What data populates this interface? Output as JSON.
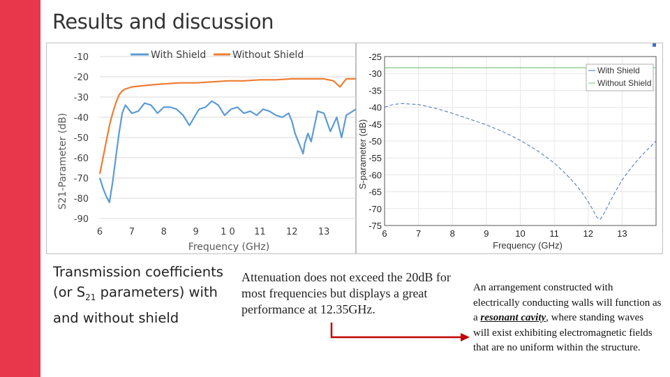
{
  "page": {
    "title": "Results and discussion",
    "accent_color": "#e8364a"
  },
  "captions": {
    "left_prefix": "Transmission coefficients (or S",
    "left_sub": "21",
    "left_suffix": " parameters) with and without shield",
    "middle": "Attenuation does not exceed the 20dB for most frequencies but displays a great performance at 12.35GHz.",
    "right_prefix": "An arrangement constructed with electrically conducting walls will function as a ",
    "right_emphasis": "resonant cavity",
    "right_suffix": ", where standing waves will exist exhibiting electromagnetic fields that are no uniform within the structure."
  },
  "chart_data": [
    {
      "type": "line",
      "xlabel": "Frequency (GHz)",
      "ylabel": "S21-Parameter (dB)",
      "xlim": [
        6,
        14
      ],
      "ylim": [
        -90,
        -10
      ],
      "x_ticks": [
        6,
        7,
        8,
        9,
        10,
        11,
        12,
        13
      ],
      "x_tick_labels": [
        "6",
        "7",
        "8",
        "9",
        "1 0",
        "11",
        "12",
        "13"
      ],
      "y_ticks": [
        -10,
        -20,
        -30,
        -40,
        -50,
        -60,
        -70,
        -80,
        -90
      ],
      "grid": true,
      "legend_position": "top",
      "series": [
        {
          "name": "With Shield",
          "color": "#5b9bd5",
          "x": [
            6.0,
            6.1,
            6.2,
            6.3,
            6.4,
            6.5,
            6.6,
            6.7,
            6.8,
            6.9,
            7.0,
            7.2,
            7.4,
            7.6,
            7.8,
            8.0,
            8.2,
            8.4,
            8.6,
            8.8,
            8.95,
            9.1,
            9.3,
            9.5,
            9.7,
            9.9,
            10.1,
            10.3,
            10.5,
            10.7,
            10.9,
            11.1,
            11.3,
            11.5,
            11.7,
            11.9,
            12.0,
            12.1,
            12.2,
            12.3,
            12.35,
            12.4,
            12.5,
            12.6,
            12.8,
            13.0,
            13.2,
            13.4,
            13.55,
            13.7,
            13.9,
            14.0
          ],
          "y": [
            -70,
            -75,
            -79,
            -82,
            -72,
            -60,
            -48,
            -38,
            -34,
            -36,
            -38,
            -37,
            -33,
            -34,
            -38,
            -35,
            -35,
            -36,
            -39,
            -44,
            -40,
            -36,
            -35,
            -32,
            -34,
            -39,
            -36,
            -35,
            -38,
            -37,
            -39,
            -36,
            -37,
            -39,
            -40,
            -38,
            -42,
            -48,
            -52,
            -56,
            -58,
            -53,
            -48,
            -52,
            -37,
            -38,
            -47,
            -40,
            -50,
            -39,
            -37,
            -36
          ]
        },
        {
          "name": "Without Shield",
          "color": "#ed7d31",
          "x": [
            6.0,
            6.1,
            6.2,
            6.3,
            6.4,
            6.5,
            6.6,
            6.7,
            6.8,
            6.9,
            7.0,
            7.3,
            7.6,
            8.0,
            8.5,
            9.0,
            9.5,
            10.0,
            10.5,
            11.0,
            11.5,
            12.0,
            12.5,
            13.0,
            13.3,
            13.5,
            13.7,
            14.0
          ],
          "y": [
            -68,
            -60,
            -52,
            -44,
            -38,
            -33,
            -29,
            -27,
            -26,
            -25.5,
            -25,
            -24.5,
            -24,
            -23.5,
            -23,
            -23,
            -22.5,
            -22,
            -22,
            -21.5,
            -21.5,
            -21,
            -21,
            -21,
            -22,
            -25,
            -21,
            -21
          ]
        }
      ]
    },
    {
      "type": "line",
      "xlabel": "Frequency (GHz)",
      "ylabel": "S-parameter (dB)",
      "xlim": [
        6,
        14
      ],
      "ylim": [
        -75,
        -25
      ],
      "x_ticks": [
        6,
        7,
        8,
        9,
        10,
        11,
        12,
        13
      ],
      "y_ticks": [
        -25,
        -30,
        -35,
        -40,
        -45,
        -50,
        -55,
        -60,
        -65,
        -70,
        -75
      ],
      "grid": true,
      "legend_position": "top-right",
      "series": [
        {
          "name": "With Shield",
          "color": "#4472c4",
          "x": [
            6.0,
            6.25,
            6.5,
            7.0,
            7.5,
            8.0,
            8.5,
            9.0,
            9.5,
            10.0,
            10.5,
            11.0,
            11.3,
            11.6,
            11.8,
            12.0,
            12.15,
            12.25,
            12.35,
            12.45,
            12.6,
            12.8,
            13.0,
            13.3,
            13.6,
            14.0
          ],
          "y": [
            -40,
            -39.2,
            -38.9,
            -39.2,
            -40.3,
            -41.8,
            -43.5,
            -45.2,
            -47.3,
            -49.8,
            -52.8,
            -56.5,
            -59.3,
            -62.5,
            -65,
            -68,
            -70.5,
            -72.5,
            -73.2,
            -71.8,
            -68.8,
            -65,
            -61.5,
            -57.5,
            -54,
            -50
          ]
        },
        {
          "name": "Without Shield",
          "color": "#7ec87e",
          "x": [
            6.0,
            14.0
          ],
          "y": [
            -28.3,
            -28.3
          ]
        }
      ]
    }
  ]
}
